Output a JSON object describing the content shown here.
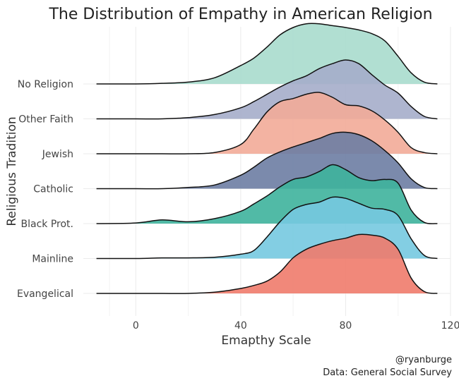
{
  "chart_data": {
    "type": "ridgeline",
    "title": "The Distribution of Empathy in American Religion",
    "xlabel": "Emapthy Scale",
    "ylabel": "Religious Tradition",
    "caption_lines": [
      "@ryanburge",
      "Data: General Social Survey"
    ],
    "xlim": [
      -20,
      120
    ],
    "xticks": [
      0,
      40,
      80,
      120
    ],
    "grid": true,
    "legend": "none",
    "x": [
      -15,
      0,
      10,
      20,
      30,
      40,
      45,
      50,
      55,
      60,
      65,
      70,
      75,
      80,
      85,
      90,
      95,
      100,
      105,
      110,
      115
    ],
    "series": [
      {
        "name": "No Religion",
        "color": "#a9dccd",
        "density": [
          0.0,
          0.0,
          0.01,
          0.03,
          0.1,
          0.3,
          0.42,
          0.6,
          0.8,
          0.92,
          0.98,
          0.98,
          0.95,
          0.92,
          0.88,
          0.82,
          0.7,
          0.45,
          0.18,
          0.03,
          0.0
        ]
      },
      {
        "name": "Other Faith",
        "color": "#a5adca",
        "density": [
          0.0,
          0.0,
          0.0,
          0.02,
          0.07,
          0.18,
          0.28,
          0.4,
          0.52,
          0.62,
          0.7,
          0.82,
          0.9,
          0.96,
          0.9,
          0.72,
          0.55,
          0.42,
          0.2,
          0.04,
          0.0
        ]
      },
      {
        "name": "Jewish",
        "color": "#f2ab98",
        "density": [
          0.0,
          0.0,
          0.0,
          0.0,
          0.02,
          0.15,
          0.4,
          0.68,
          0.85,
          0.9,
          0.97,
          1.0,
          0.92,
          0.8,
          0.78,
          0.7,
          0.55,
          0.35,
          0.1,
          0.02,
          0.0
        ]
      },
      {
        "name": "Catholic",
        "color": "#6d7da3",
        "density": [
          0.0,
          0.0,
          0.0,
          0.02,
          0.06,
          0.22,
          0.35,
          0.5,
          0.6,
          0.68,
          0.75,
          0.82,
          0.9,
          0.92,
          0.88,
          0.78,
          0.62,
          0.42,
          0.16,
          0.02,
          0.0
        ]
      },
      {
        "name": "Black Prot.",
        "color": "#3eb29c",
        "density": [
          0.0,
          0.01,
          0.06,
          0.03,
          0.08,
          0.2,
          0.32,
          0.45,
          0.6,
          0.72,
          0.76,
          0.85,
          0.96,
          0.88,
          0.75,
          0.7,
          0.72,
          0.66,
          0.22,
          0.02,
          0.0
        ]
      },
      {
        "name": "Mainline",
        "color": "#76c9e0",
        "density": [
          0.0,
          0.0,
          0.01,
          0.01,
          0.02,
          0.07,
          0.13,
          0.35,
          0.6,
          0.8,
          0.88,
          0.92,
          1.0,
          0.98,
          0.9,
          0.82,
          0.8,
          0.7,
          0.32,
          0.05,
          0.0
        ]
      },
      {
        "name": "Evangelical",
        "color": "#ef7b6b",
        "density": [
          0.0,
          0.0,
          0.0,
          0.0,
          0.02,
          0.08,
          0.13,
          0.2,
          0.35,
          0.58,
          0.72,
          0.8,
          0.86,
          0.9,
          0.96,
          0.95,
          0.9,
          0.72,
          0.25,
          0.03,
          0.0
        ]
      }
    ]
  }
}
